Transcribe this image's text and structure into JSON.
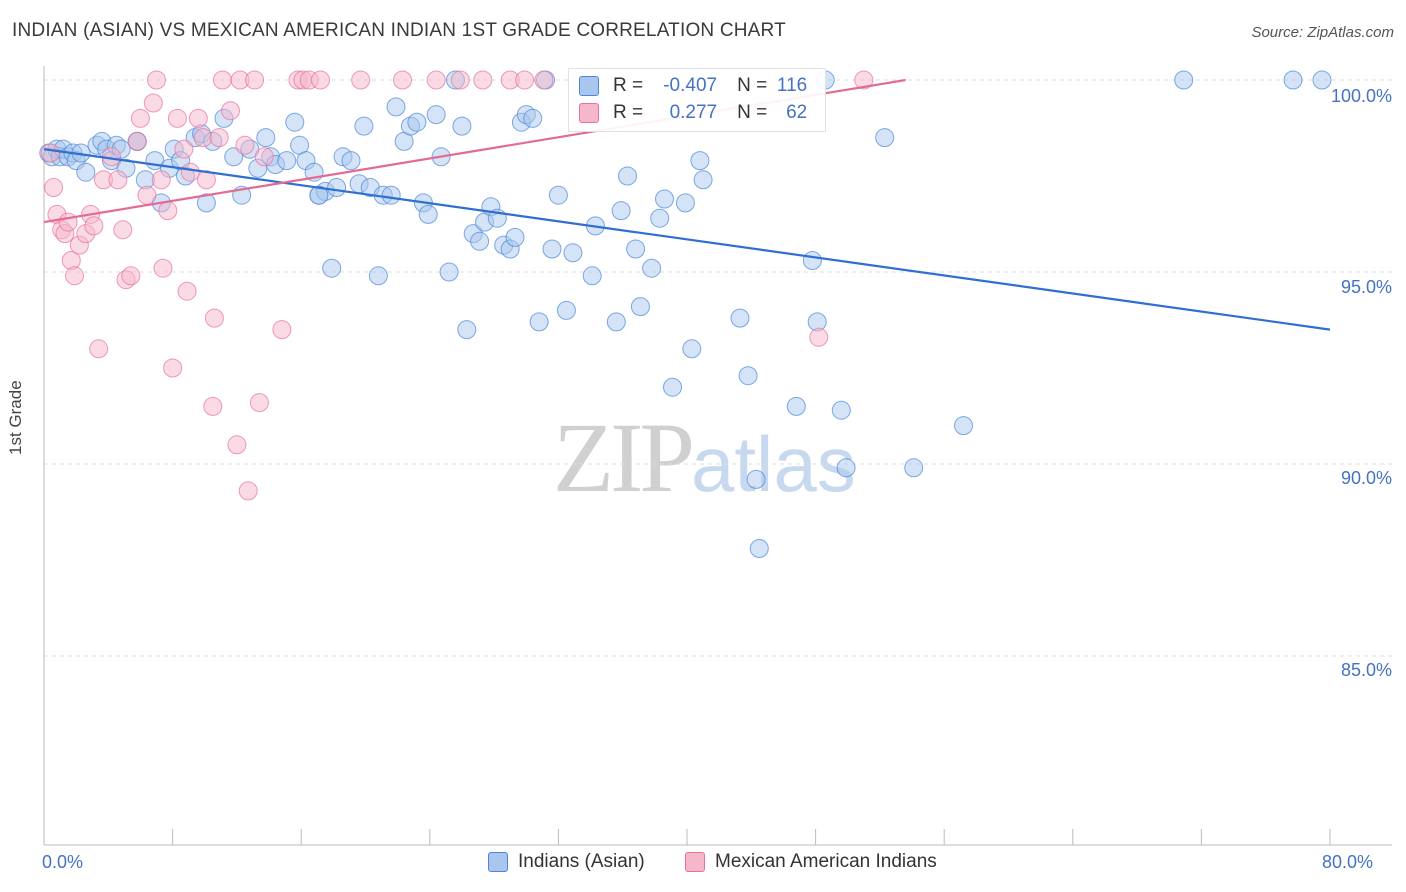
{
  "chart_data": {
    "type": "scatter",
    "title": "INDIAN (ASIAN) VS MEXICAN AMERICAN INDIAN 1ST GRADE CORRELATION CHART",
    "source": "Source: ZipAtlas.com",
    "xlabel": "",
    "ylabel": "1st Grade",
    "xlim": [
      0,
      80
    ],
    "ylim": [
      80.5,
      100.8
    ],
    "x_tick_labels": {
      "left": "0.0%",
      "right": "80.0%"
    },
    "y_ticks": [
      {
        "value": 100,
        "label": "100.0%"
      },
      {
        "value": 95,
        "label": "95.0%"
      },
      {
        "value": 90,
        "label": "90.0%"
      },
      {
        "value": 85,
        "label": "85.0%"
      }
    ],
    "watermark": {
      "zip": "ZIP",
      "atlas": "atlas"
    },
    "legend": {
      "r_label": "R =",
      "n_label": "N ="
    },
    "series": [
      {
        "name": "Indians (Asian)",
        "color": "#4a86d8",
        "fill": "#a9c7ee",
        "r": "-0.407",
        "n": "116",
        "trend": {
          "x0": 0,
          "y0": 98.2,
          "x1": 80,
          "y1": 93.5
        },
        "points": [
          [
            0.3,
            98.1
          ],
          [
            0.5,
            98.0
          ],
          [
            0.8,
            98.2
          ],
          [
            1.0,
            98.0
          ],
          [
            1.2,
            98.2
          ],
          [
            1.5,
            98.0
          ],
          [
            1.8,
            98.1
          ],
          [
            2.0,
            97.9
          ],
          [
            2.3,
            98.1
          ],
          [
            2.6,
            97.6
          ],
          [
            3.3,
            98.3
          ],
          [
            3.6,
            98.4
          ],
          [
            3.9,
            98.2
          ],
          [
            4.2,
            97.9
          ],
          [
            4.5,
            98.3
          ],
          [
            4.8,
            98.2
          ],
          [
            5.1,
            97.7
          ],
          [
            5.8,
            98.4
          ],
          [
            6.3,
            97.4
          ],
          [
            6.9,
            97.9
          ],
          [
            7.3,
            96.8
          ],
          [
            7.8,
            97.7
          ],
          [
            8.1,
            98.2
          ],
          [
            8.5,
            97.9
          ],
          [
            8.8,
            97.5
          ],
          [
            9.4,
            98.5
          ],
          [
            9.8,
            98.6
          ],
          [
            10.1,
            96.8
          ],
          [
            10.5,
            98.4
          ],
          [
            11.2,
            99.0
          ],
          [
            11.8,
            98.0
          ],
          [
            12.3,
            97.0
          ],
          [
            12.8,
            98.2
          ],
          [
            13.3,
            97.7
          ],
          [
            13.8,
            98.5
          ],
          [
            14.1,
            98.0
          ],
          [
            14.4,
            97.8
          ],
          [
            15.1,
            97.9
          ],
          [
            15.6,
            98.9
          ],
          [
            15.9,
            98.3
          ],
          [
            16.3,
            97.9
          ],
          [
            16.8,
            97.6
          ],
          [
            17.1,
            97.0
          ],
          [
            17.5,
            97.1
          ],
          [
            17.9,
            95.1
          ],
          [
            18.2,
            97.2
          ],
          [
            18.6,
            98.0
          ],
          [
            19.1,
            97.9
          ],
          [
            19.6,
            97.3
          ],
          [
            19.9,
            98.8
          ],
          [
            20.3,
            97.2
          ],
          [
            20.8,
            94.9
          ],
          [
            21.1,
            97.0
          ],
          [
            21.6,
            97.0
          ],
          [
            21.9,
            99.3
          ],
          [
            22.4,
            98.4
          ],
          [
            22.8,
            98.8
          ],
          [
            23.2,
            98.9
          ],
          [
            23.6,
            96.8
          ],
          [
            23.9,
            96.5
          ],
          [
            24.4,
            99.1
          ],
          [
            24.7,
            98.0
          ],
          [
            25.2,
            95.0
          ],
          [
            25.6,
            100.0
          ],
          [
            26.0,
            98.8
          ],
          [
            26.3,
            93.5
          ],
          [
            26.7,
            96.0
          ],
          [
            27.1,
            95.8
          ],
          [
            27.4,
            96.3
          ],
          [
            27.8,
            96.7
          ],
          [
            28.2,
            96.4
          ],
          [
            28.6,
            95.7
          ],
          [
            29.0,
            95.6
          ],
          [
            29.3,
            95.9
          ],
          [
            29.7,
            98.9
          ],
          [
            30.0,
            99.1
          ],
          [
            30.4,
            99.0
          ],
          [
            30.8,
            93.7
          ],
          [
            31.2,
            100.0
          ],
          [
            31.6,
            95.6
          ],
          [
            32.0,
            97.0
          ],
          [
            32.5,
            94.0
          ],
          [
            32.9,
            95.5
          ],
          [
            34.1,
            94.9
          ],
          [
            34.3,
            96.2
          ],
          [
            35.6,
            93.7
          ],
          [
            35.9,
            96.6
          ],
          [
            36.3,
            97.5
          ],
          [
            36.8,
            95.6
          ],
          [
            37.1,
            94.1
          ],
          [
            37.8,
            95.1
          ],
          [
            38.3,
            96.4
          ],
          [
            38.6,
            96.9
          ],
          [
            39.1,
            92.0
          ],
          [
            39.9,
            96.8
          ],
          [
            40.3,
            93.0
          ],
          [
            40.8,
            97.9
          ],
          [
            41.0,
            97.4
          ],
          [
            43.3,
            93.8
          ],
          [
            43.8,
            92.3
          ],
          [
            44.3,
            89.6
          ],
          [
            44.5,
            87.8
          ],
          [
            46.8,
            91.5
          ],
          [
            47.8,
            95.3
          ],
          [
            48.1,
            93.7
          ],
          [
            49.6,
            91.4
          ],
          [
            49.9,
            89.9
          ],
          [
            52.3,
            98.5
          ],
          [
            54.1,
            89.9
          ],
          [
            57.2,
            91.0
          ],
          [
            48.6,
            100.0
          ],
          [
            70.9,
            100.0
          ],
          [
            77.7,
            100.0
          ],
          [
            79.5,
            100.0
          ],
          [
            5.8,
            98.4
          ],
          [
            17.1,
            97.0
          ]
        ]
      },
      {
        "name": "Mexican American Indians",
        "color": "#e8709a",
        "fill": "#f5b8cb",
        "r": "0.277",
        "n": "62",
        "trend": {
          "x0": 0,
          "y0": 96.3,
          "x1": 53.6,
          "y1": 100.0
        },
        "points": [
          [
            0.4,
            98.1
          ],
          [
            0.6,
            97.2
          ],
          [
            0.8,
            96.5
          ],
          [
            1.1,
            96.1
          ],
          [
            1.3,
            96.0
          ],
          [
            1.5,
            96.3
          ],
          [
            1.7,
            95.3
          ],
          [
            1.9,
            94.9
          ],
          [
            2.2,
            95.7
          ],
          [
            2.6,
            96.0
          ],
          [
            2.9,
            96.5
          ],
          [
            3.1,
            96.2
          ],
          [
            3.4,
            93.0
          ],
          [
            3.7,
            97.4
          ],
          [
            4.2,
            98.0
          ],
          [
            4.6,
            97.4
          ],
          [
            4.9,
            96.1
          ],
          [
            5.1,
            94.8
          ],
          [
            5.4,
            94.9
          ],
          [
            5.8,
            98.4
          ],
          [
            6.0,
            99.0
          ],
          [
            6.4,
            97.0
          ],
          [
            6.8,
            99.4
          ],
          [
            7.0,
            100.0
          ],
          [
            7.3,
            97.4
          ],
          [
            7.7,
            96.6
          ],
          [
            7.4,
            95.1
          ],
          [
            8.0,
            92.5
          ],
          [
            8.3,
            99.0
          ],
          [
            8.7,
            98.2
          ],
          [
            8.9,
            94.5
          ],
          [
            9.1,
            97.6
          ],
          [
            9.6,
            99.0
          ],
          [
            9.9,
            98.5
          ],
          [
            10.1,
            97.4
          ],
          [
            10.5,
            91.5
          ],
          [
            10.6,
            93.8
          ],
          [
            10.9,
            98.5
          ],
          [
            11.1,
            100.0
          ],
          [
            11.6,
            99.2
          ],
          [
            12.0,
            90.5
          ],
          [
            12.2,
            100.0
          ],
          [
            12.5,
            98.3
          ],
          [
            12.7,
            89.3
          ],
          [
            13.1,
            100.0
          ],
          [
            13.4,
            91.6
          ],
          [
            13.7,
            98.0
          ],
          [
            14.8,
            93.5
          ],
          [
            15.8,
            100.0
          ],
          [
            16.1,
            100.0
          ],
          [
            16.5,
            100.0
          ],
          [
            17.2,
            100.0
          ],
          [
            19.7,
            100.0
          ],
          [
            22.3,
            100.0
          ],
          [
            24.4,
            100.0
          ],
          [
            25.9,
            100.0
          ],
          [
            27.3,
            100.0
          ],
          [
            29.0,
            100.0
          ],
          [
            29.9,
            100.0
          ],
          [
            31.1,
            100.0
          ],
          [
            48.2,
            93.3
          ],
          [
            51.0,
            100.0
          ]
        ]
      }
    ]
  }
}
